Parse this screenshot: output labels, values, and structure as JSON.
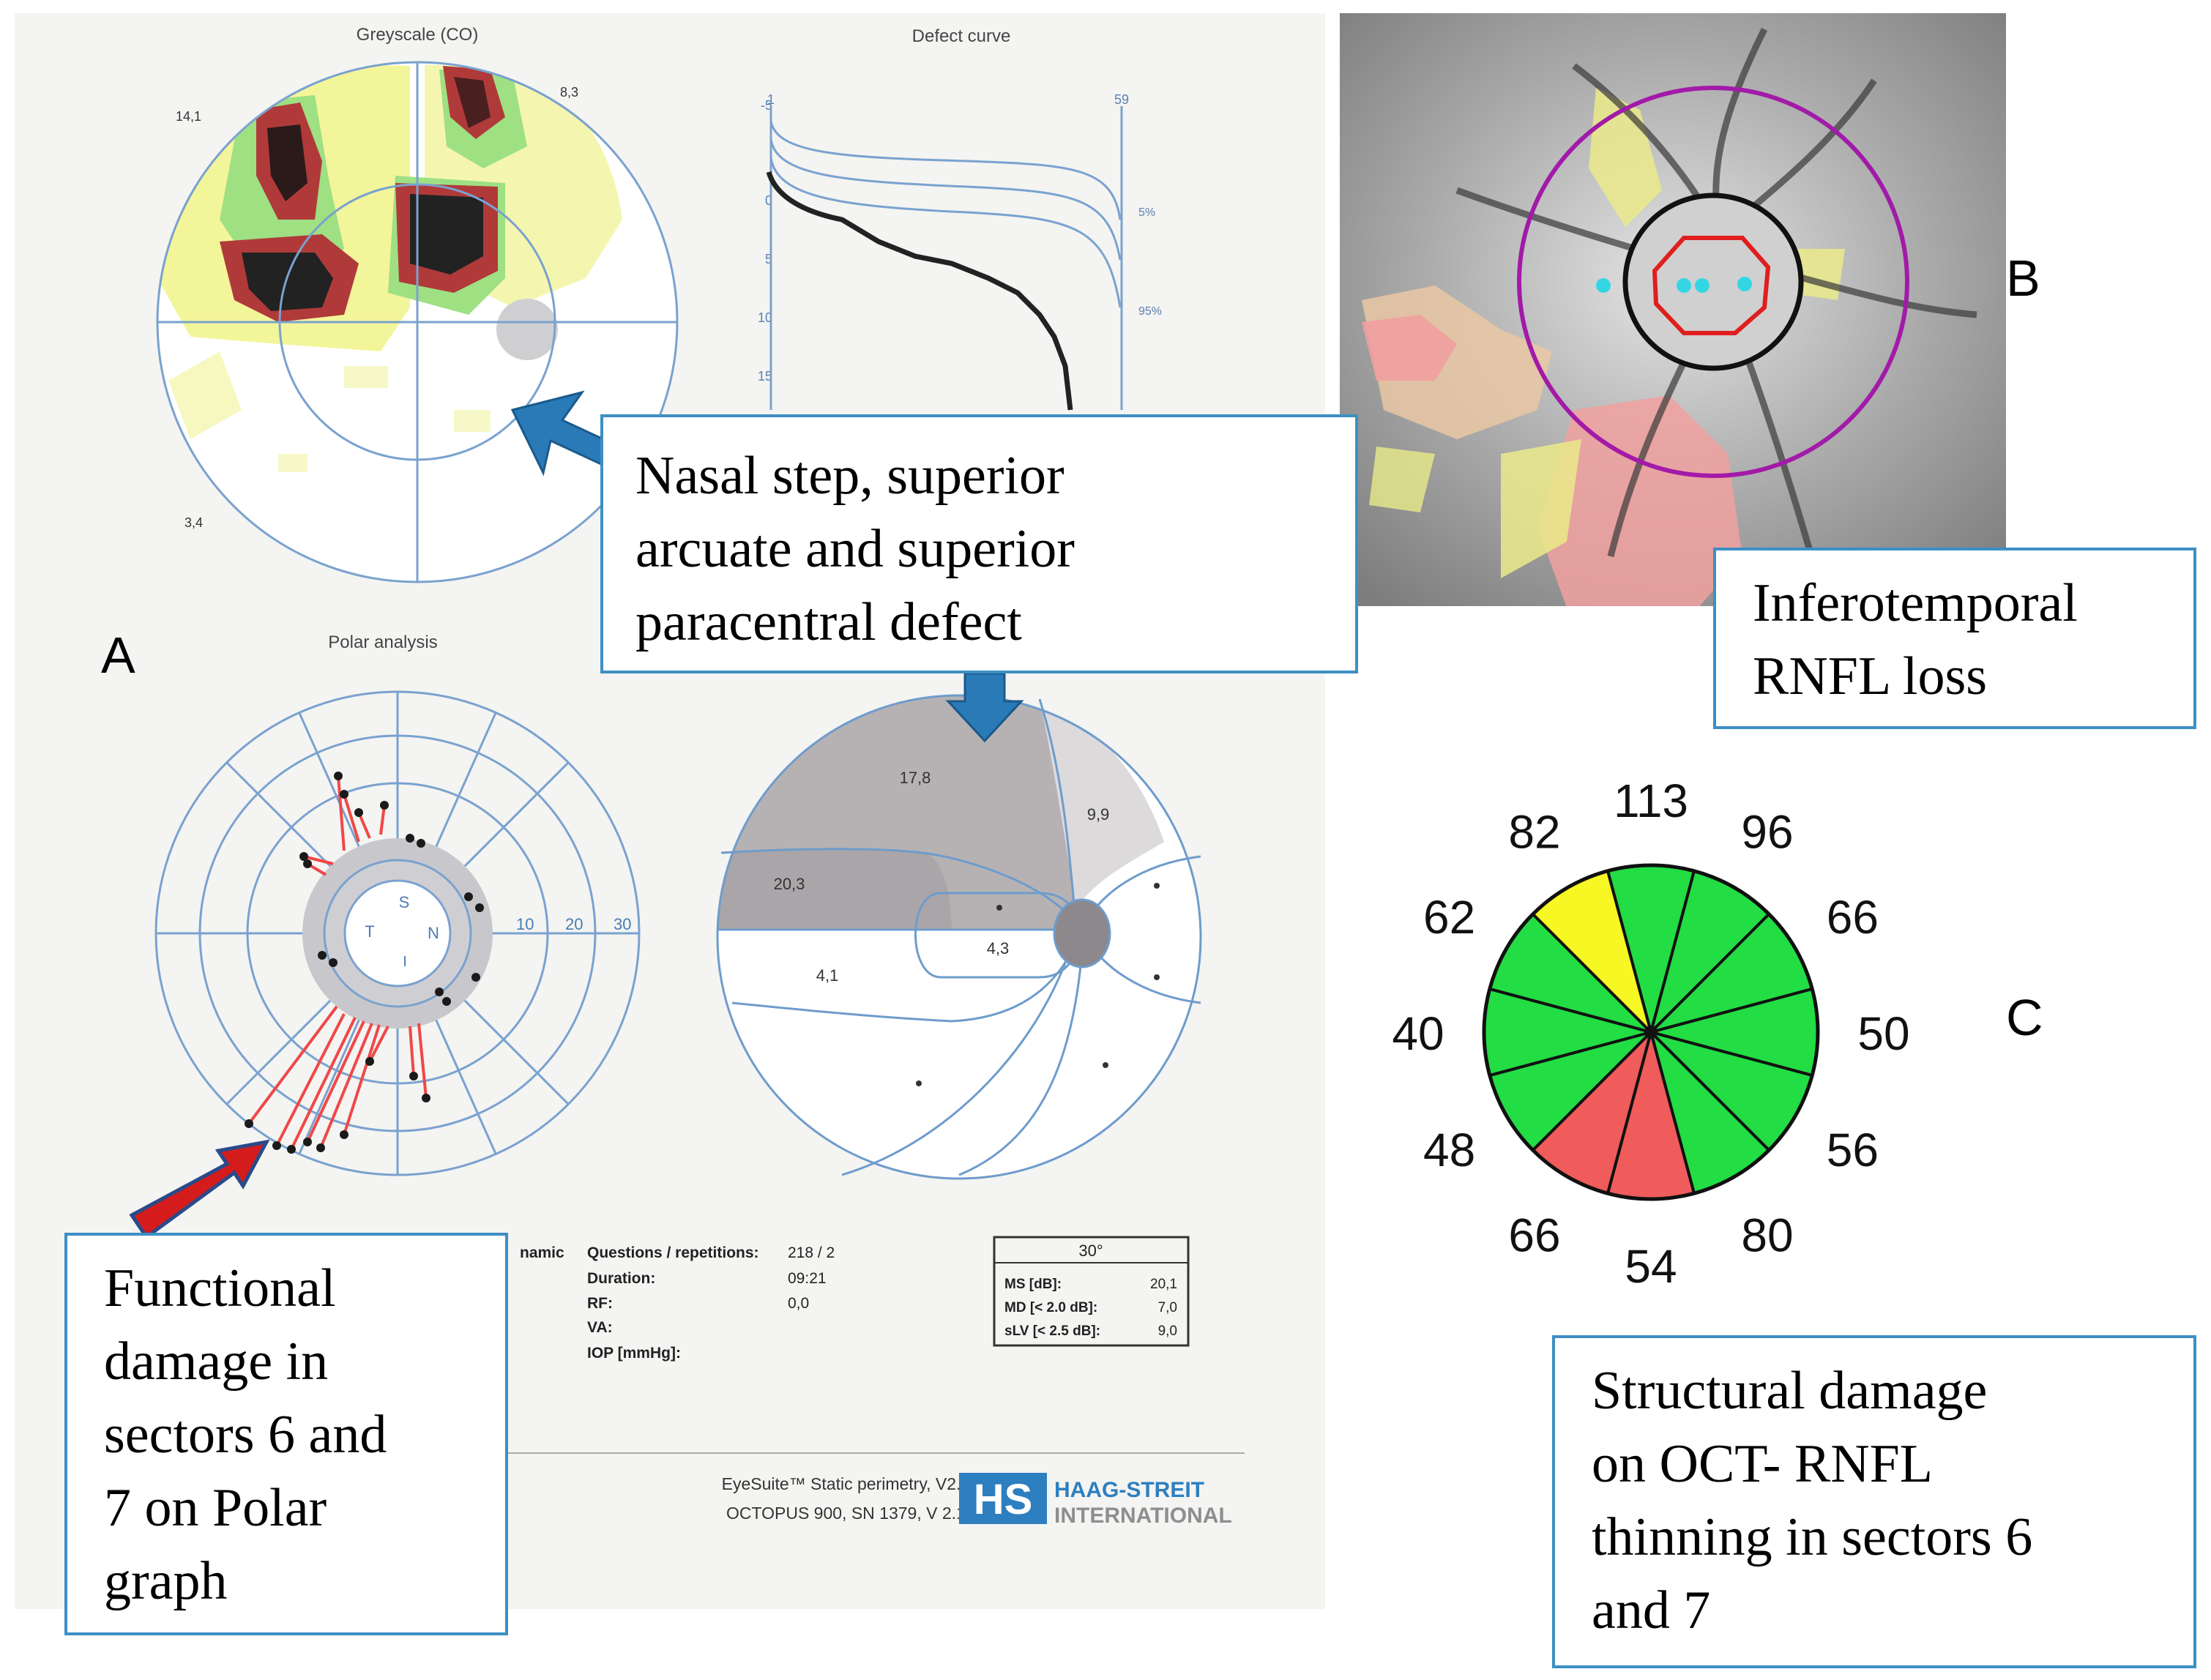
{
  "panels": {
    "a": "A",
    "b": "B",
    "c": "C"
  },
  "report": {
    "greyscale_title": "Greyscale (CO)",
    "defect_curve_title": "Defect curve",
    "polar_title": "Polar analysis",
    "corner_values": [
      "14,1",
      "8,3",
      "3,4"
    ],
    "defect_axis_left": [
      "-5",
      "0",
      "5",
      "10",
      "15"
    ],
    "defect_axis_top": [
      "1",
      "59"
    ],
    "defect_percent_labels": [
      "5%",
      "95%"
    ],
    "polar_letters": {
      "s": "S",
      "t": "T",
      "n": "N",
      "i": "I"
    },
    "polar_scale": [
      "10",
      "20",
      "30"
    ],
    "cluster_values": [
      "17,8",
      "9,9",
      "20,3",
      "4,3",
      "4,1"
    ],
    "info_left": "namic",
    "info_labels": [
      "Questions / repetitions:",
      "Duration:",
      "RF:",
      "VA:",
      "IOP [mmHg]:"
    ],
    "info_values": [
      "218 / 2",
      "09:21",
      "0,0"
    ],
    "stat_header": "30°",
    "stat_rows": [
      {
        "label": "MS [dB]:",
        "value": "20,1"
      },
      {
        "label": "MD [< 2.0 dB]:",
        "value": "7,0"
      },
      {
        "label": "sLV [< 2.5 dB]:",
        "value": "9,0"
      }
    ],
    "footer_line1": "EyeSuite™ Static perimetry, V2.1.0",
    "footer_line2": "OCTOPUS 900, SN 1379, V 2.1.3",
    "logo_mark": "HS",
    "logo_line1": "HAAG-STREIT",
    "logo_line2": "INTERNATIONAL"
  },
  "captions": {
    "nasal": [
      "Nasal step, superior",
      "arcuate and superior",
      "paracentral defect"
    ],
    "infero": [
      "Inferotemporal",
      "RNFL loss"
    ],
    "functional": [
      "Functional",
      "damage in",
      "sectors 6 and",
      "7 on Polar",
      "graph"
    ],
    "structural": [
      "Structural damage",
      "on OCT- RNFL",
      "thinning in sectors 6",
      "and 7"
    ]
  },
  "sector_chart": {
    "values": [
      "113",
      "96",
      "66",
      "50",
      "56",
      "80",
      "54",
      "66",
      "48",
      "40",
      "62",
      "82"
    ],
    "colors": [
      "#22dd44",
      "#22dd44",
      "#22dd44",
      "#22dd44",
      "#22dd44",
      "#22dd44",
      "#f05b5b",
      "#f05b5b",
      "#22dd44",
      "#22dd44",
      "#22dd44",
      "#f7f724"
    ]
  },
  "colors": {
    "caption_border": "#3d8fc4",
    "chart_line": "#6e9ccc",
    "arrow_blue": "#2a7ab8",
    "arrow_red": "#d41c1c",
    "ring_magenta": "#a21aa8"
  }
}
